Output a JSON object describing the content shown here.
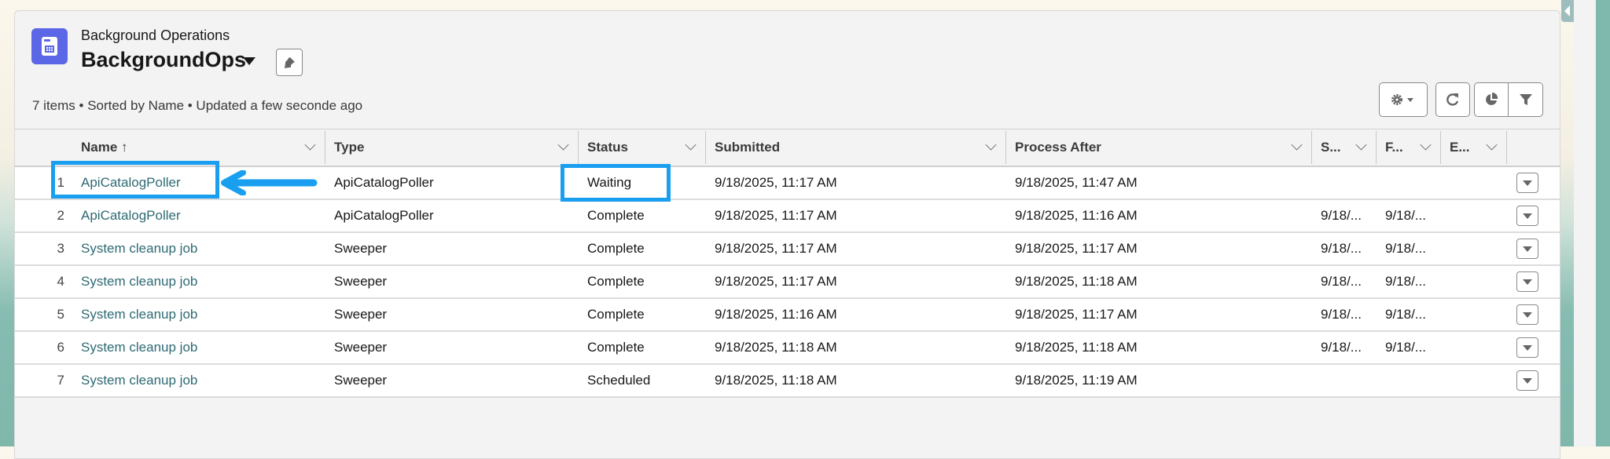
{
  "header": {
    "object_label": "Background Operations",
    "list_name": "BackgroundOps",
    "summary": "7 items • Sorted by Name • Updated a few seconde ago",
    "icon": "calendar-form-icon",
    "icon_color": "#5b67e6"
  },
  "toolbar": {
    "settings_icon": "gear-icon",
    "refresh_icon": "refresh-icon",
    "chart_icon": "pie-chart-icon",
    "filter_icon": "filter-icon"
  },
  "columns": [
    {
      "label": "Name ↑"
    },
    {
      "label": "Type"
    },
    {
      "label": "Status"
    },
    {
      "label": "Submitted"
    },
    {
      "label": "Process After"
    },
    {
      "label": "S..."
    },
    {
      "label": "F..."
    },
    {
      "label": "E..."
    }
  ],
  "rows": [
    {
      "num": "1",
      "name": "ApiCatalogPoller",
      "type": "ApiCatalogPoller",
      "status": "Waiting",
      "submitted": "9/18/2025, 11:17 AM",
      "process_after": "9/18/2025, 11:47 AM",
      "s": "",
      "f": "",
      "e": ""
    },
    {
      "num": "2",
      "name": "ApiCatalogPoller",
      "type": "ApiCatalogPoller",
      "status": "Complete",
      "submitted": "9/18/2025, 11:17 AM",
      "process_after": "9/18/2025, 11:16 AM",
      "s": "9/18/...",
      "f": "9/18/...",
      "e": ""
    },
    {
      "num": "3",
      "name": "System cleanup job",
      "type": "Sweeper",
      "status": "Complete",
      "submitted": "9/18/2025, 11:17 AM",
      "process_after": "9/18/2025, 11:17 AM",
      "s": "9/18/...",
      "f": "9/18/...",
      "e": ""
    },
    {
      "num": "4",
      "name": "System cleanup job",
      "type": "Sweeper",
      "status": "Complete",
      "submitted": "9/18/2025, 11:17 AM",
      "process_after": "9/18/2025, 11:18 AM",
      "s": "9/18/...",
      "f": "9/18/...",
      "e": ""
    },
    {
      "num": "5",
      "name": "System cleanup job",
      "type": "Sweeper",
      "status": "Complete",
      "submitted": "9/18/2025, 11:16 AM",
      "process_after": "9/18/2025, 11:17 AM",
      "s": "9/18/...",
      "f": "9/18/...",
      "e": ""
    },
    {
      "num": "6",
      "name": "System cleanup job",
      "type": "Sweeper",
      "status": "Complete",
      "submitted": "9/18/2025, 11:18 AM",
      "process_after": "9/18/2025, 11:18 AM",
      "s": "9/18/...",
      "f": "9/18/...",
      "e": ""
    },
    {
      "num": "7",
      "name": "System cleanup job",
      "type": "Sweeper",
      "status": "Scheduled",
      "submitted": "9/18/2025, 11:18 AM",
      "process_after": "9/18/2025, 11:19 AM",
      "s": "",
      "f": "",
      "e": ""
    }
  ],
  "annotation_color": "#1a9ff0",
  "link_color": "#2e6a73"
}
